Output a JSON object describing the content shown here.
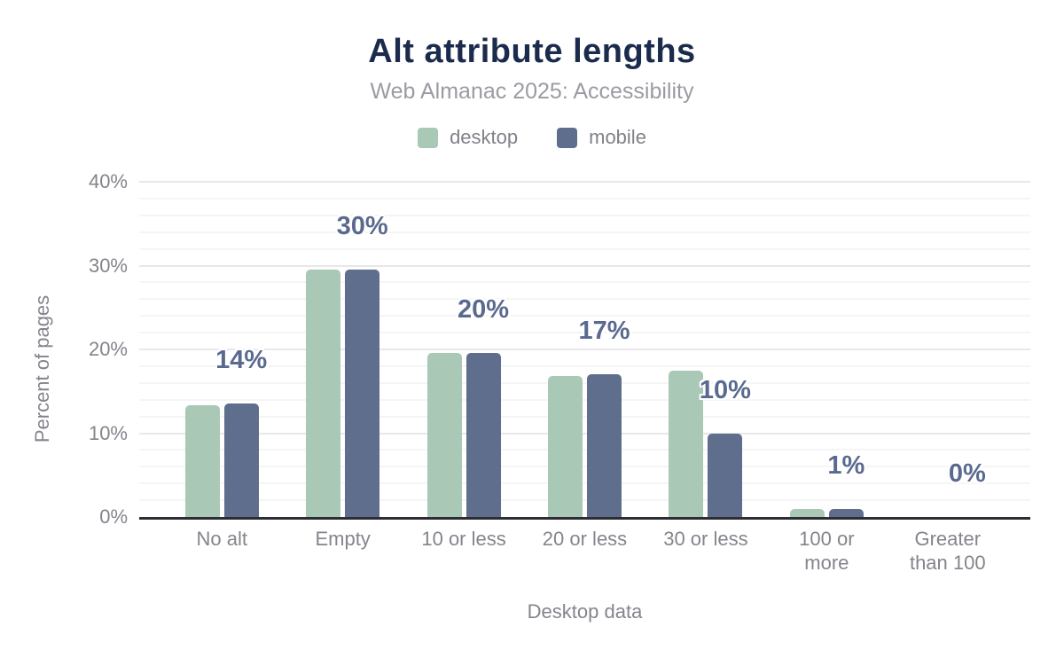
{
  "chart_data": {
    "type": "bar",
    "title": "Alt attribute lengths",
    "subtitle": "Web Almanac 2025: Accessibility",
    "categories": [
      "No alt",
      "Empty",
      "10 or less",
      "20 or less",
      "30 or less",
      "100 or\nmore",
      "Greater\nthan 100"
    ],
    "series": [
      {
        "name": "desktop",
        "color": "#a9c8b6",
        "values": [
          13.3,
          29.5,
          19.6,
          16.8,
          17.5,
          1,
          0
        ]
      },
      {
        "name": "mobile",
        "color": "#5e6e8c",
        "values": [
          13.5,
          29.5,
          19.6,
          17.0,
          10,
          1,
          0
        ]
      }
    ],
    "bar_labels": [
      "14%",
      "30%",
      "20%",
      "17%",
      "10%",
      "1%",
      "0%"
    ],
    "bar_labels_refer_to": "mobile",
    "xlabel": "Desktop data",
    "ylabel": "Percent of pages",
    "ylim": [
      0,
      40
    ],
    "yticks": [
      {
        "value": 0,
        "label": "0%"
      },
      {
        "value": 10,
        "label": "10%"
      },
      {
        "value": 20,
        "label": "20%"
      },
      {
        "value": 30,
        "label": "30%"
      },
      {
        "value": 40,
        "label": "40%"
      }
    ],
    "grid": "horizontal, major every 10%, minor every 2%",
    "grid_minor_step": 2,
    "legend_position": "top",
    "colors": {
      "title": "#1b2b4d",
      "subtitle": "#9b9ba3",
      "axis_text": "#84848c",
      "legend_text": "#80808a",
      "data_label": "#5a6a8f",
      "axis_line": "#2d2d33",
      "grid_major": "#e8e8ea",
      "grid_minor": "#f5f5f6"
    }
  }
}
